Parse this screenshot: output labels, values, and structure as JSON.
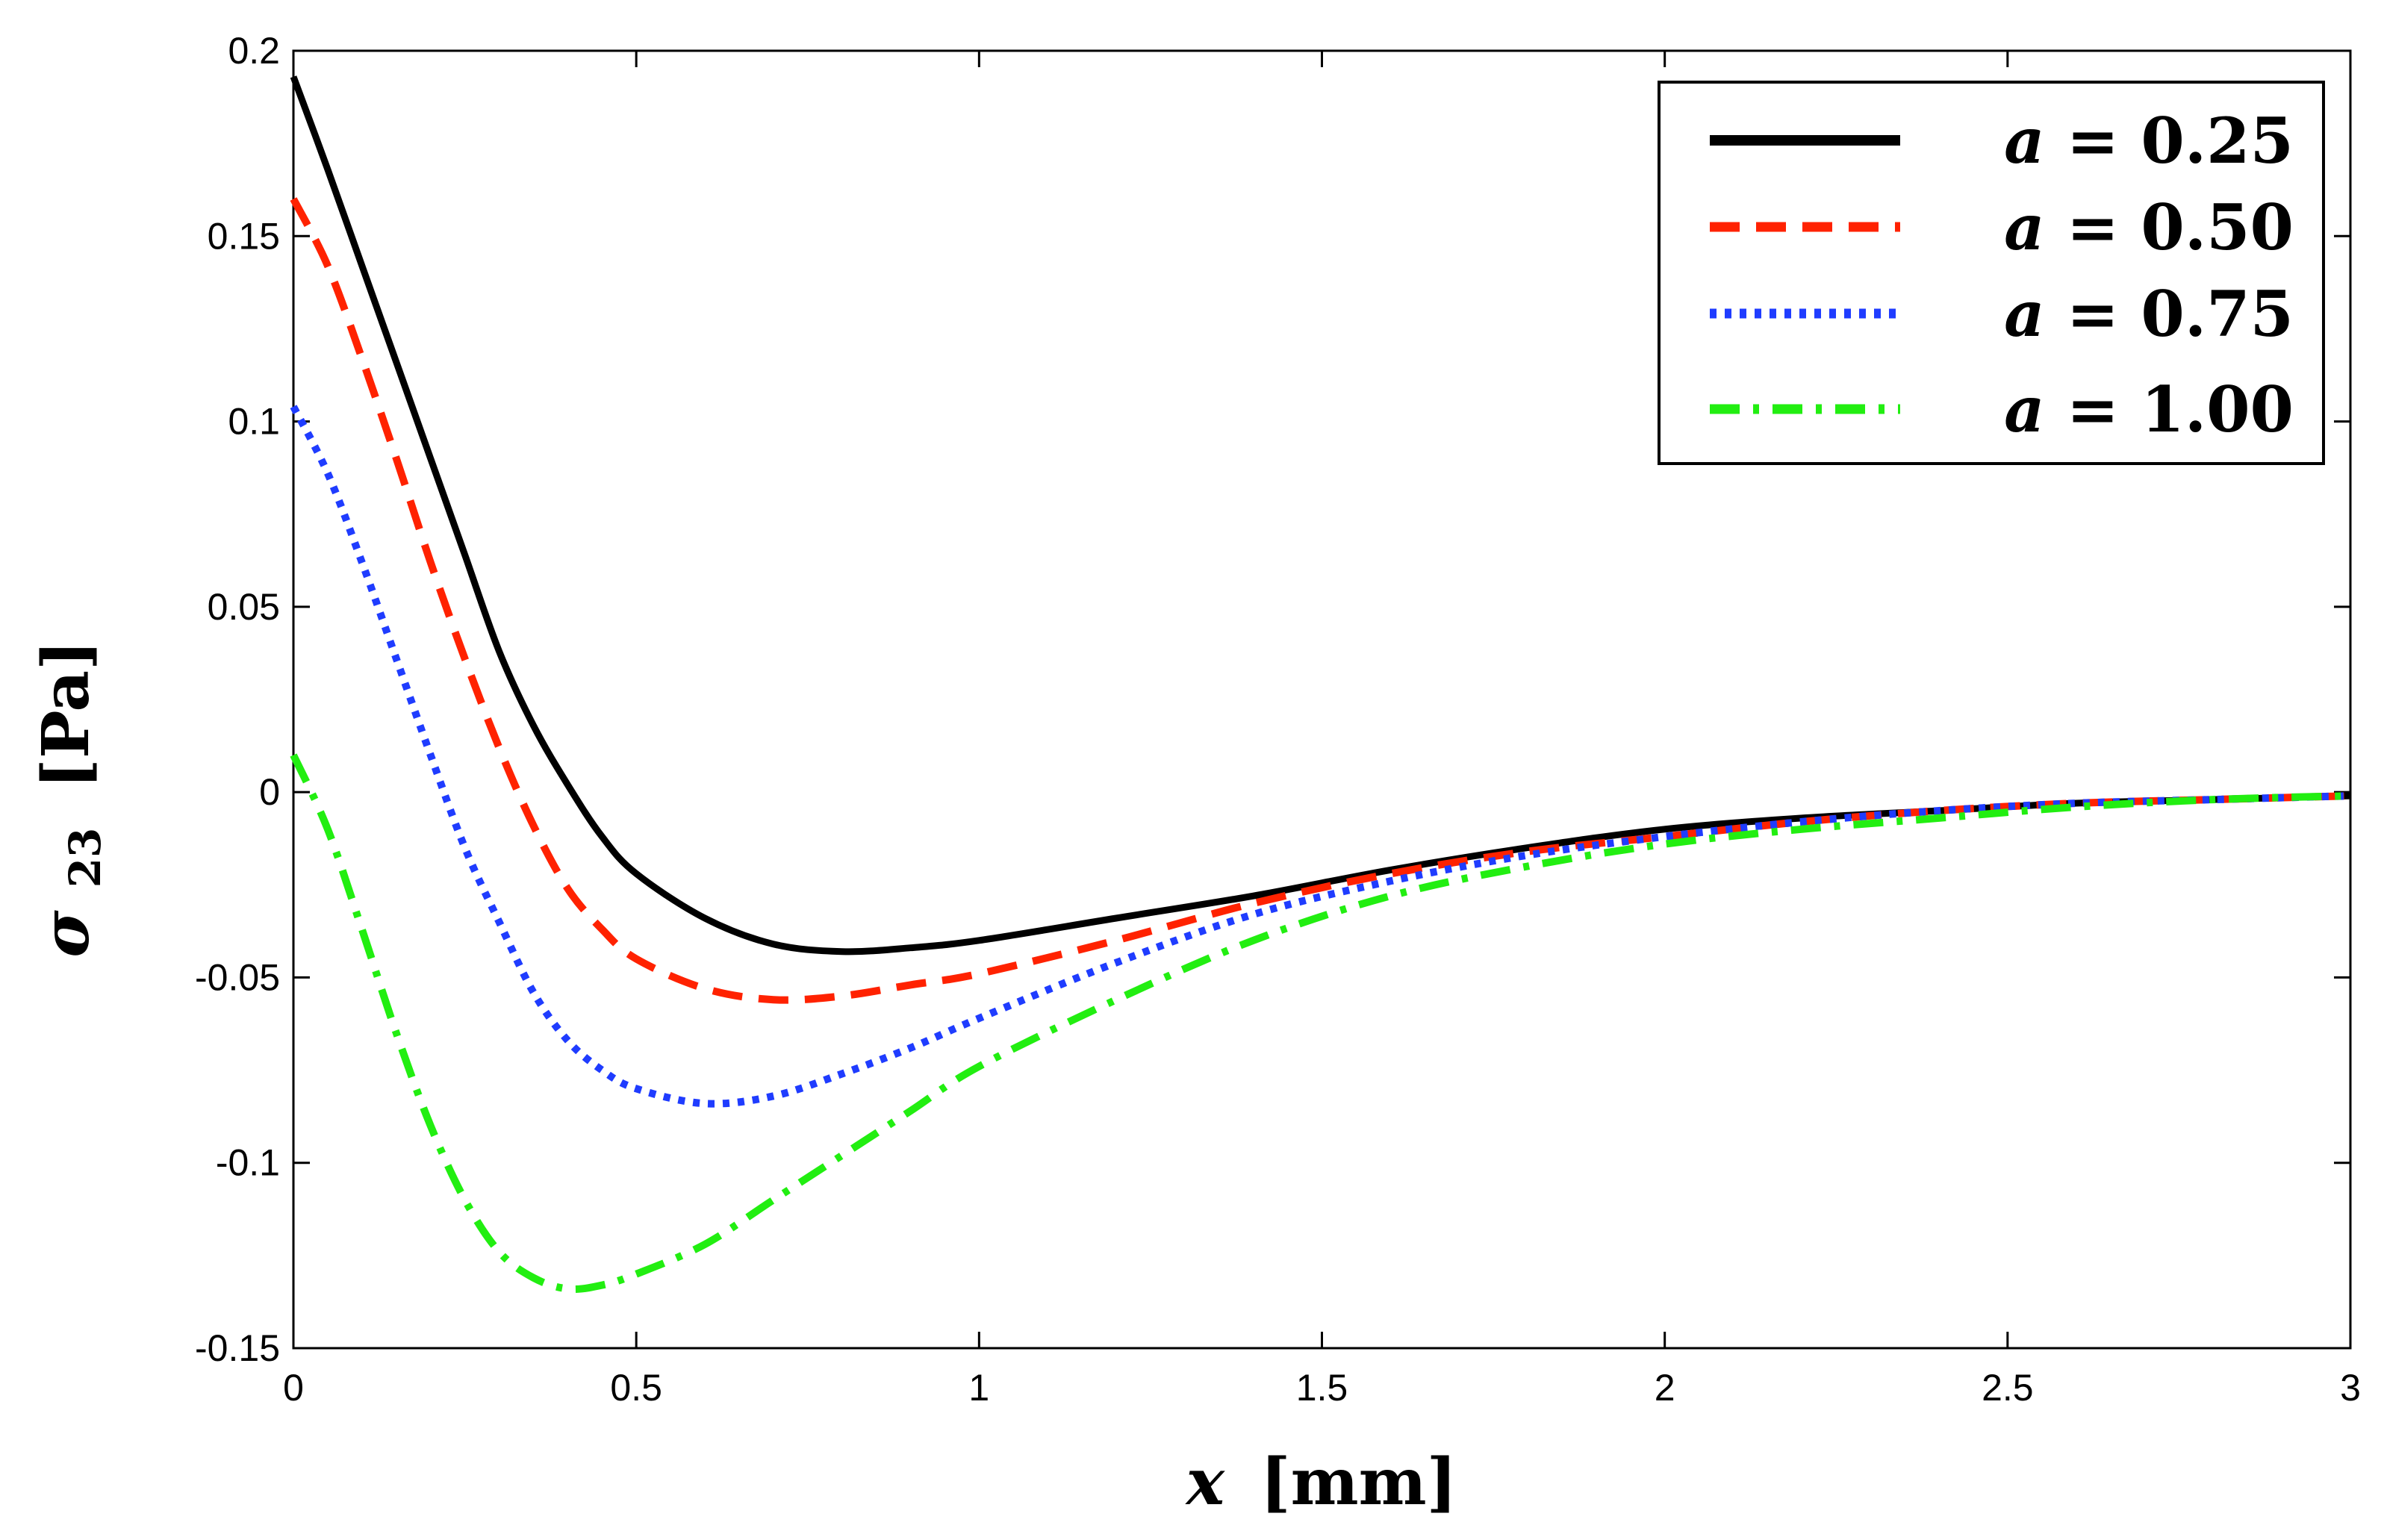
{
  "chart_data": {
    "type": "line",
    "title": "",
    "xlabel": {
      "var": "x",
      "unit": "[mm]"
    },
    "ylabel": {
      "var": "σ",
      "sub": "23",
      "unit": "[Pa]"
    },
    "xlim": [
      0,
      3
    ],
    "ylim": [
      -0.15,
      0.2
    ],
    "xticks": [
      0,
      0.5,
      1,
      1.5,
      2,
      2.5,
      3
    ],
    "xtick_labels": [
      "0",
      "0.5",
      "1",
      "1.5",
      "2",
      "2.5",
      "3"
    ],
    "yticks": [
      -0.15,
      -0.1,
      -0.05,
      0,
      0.05,
      0.1,
      0.15,
      0.2
    ],
    "ytick_labels": [
      "-0.15",
      "-0.1",
      "-0.05",
      "0",
      "0.05",
      "0.1",
      "0.15",
      "0.2"
    ],
    "grid": false,
    "legend_position": "top-right",
    "x": [
      0,
      0.05,
      0.1,
      0.15,
      0.2,
      0.25,
      0.3,
      0.35,
      0.4,
      0.45,
      0.5,
      0.6,
      0.7,
      0.8,
      0.9,
      1.0,
      1.2,
      1.4,
      1.6,
      1.8,
      2.0,
      2.2,
      2.4,
      2.6,
      2.8,
      3.0
    ],
    "series": [
      {
        "name": "a = 0.25",
        "label_var": "a",
        "label_rest": " = 0.25",
        "color": "#000000",
        "dash": "solid",
        "values": [
          0.193,
          0.168,
          0.142,
          0.116,
          0.09,
          0.064,
          0.038,
          0.018,
          0.002,
          -0.012,
          -0.022,
          -0.034,
          -0.041,
          -0.043,
          -0.042,
          -0.04,
          -0.034,
          -0.028,
          -0.021,
          -0.015,
          -0.01,
          -0.007,
          -0.005,
          -0.003,
          -0.002,
          -0.001
        ]
      },
      {
        "name": "a = 0.50",
        "label_var": "a",
        "label_rest": " = 0.50",
        "color": "#ff2200",
        "dash": "dashed",
        "values": [
          0.16,
          0.142,
          0.117,
          0.09,
          0.062,
          0.036,
          0.012,
          -0.009,
          -0.026,
          -0.037,
          -0.045,
          -0.053,
          -0.056,
          -0.055,
          -0.052,
          -0.049,
          -0.04,
          -0.03,
          -0.022,
          -0.016,
          -0.012,
          -0.008,
          -0.005,
          -0.003,
          -0.002,
          -0.001
        ]
      },
      {
        "name": "a = 0.75",
        "label_var": "a",
        "label_rest": " = 0.75",
        "color": "#1f3cff",
        "dash": "dotted",
        "values": [
          0.104,
          0.086,
          0.062,
          0.036,
          0.01,
          -0.015,
          -0.035,
          -0.054,
          -0.067,
          -0.075,
          -0.08,
          -0.084,
          -0.082,
          -0.076,
          -0.069,
          -0.061,
          -0.046,
          -0.033,
          -0.024,
          -0.017,
          -0.012,
          -0.008,
          -0.005,
          -0.003,
          -0.002,
          -0.001
        ]
      },
      {
        "name": "a = 1.00",
        "label_var": "a",
        "label_rest": " = 1.00",
        "color": "#22ee11",
        "dash": "dashdot",
        "values": [
          0.01,
          -0.01,
          -0.037,
          -0.065,
          -0.09,
          -0.11,
          -0.124,
          -0.131,
          -0.134,
          -0.133,
          -0.13,
          -0.122,
          -0.11,
          -0.098,
          -0.086,
          -0.074,
          -0.056,
          -0.04,
          -0.028,
          -0.02,
          -0.014,
          -0.01,
          -0.007,
          -0.004,
          -0.002,
          -0.001
        ]
      }
    ]
  }
}
